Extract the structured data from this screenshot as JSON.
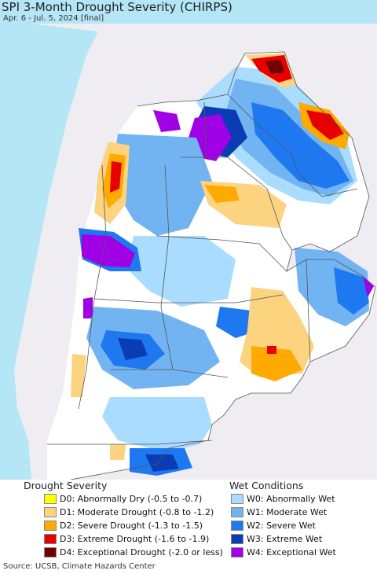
{
  "title": "SPI 3-Month Drought Severity (CHIRPS)",
  "subtitle": "Apr. 6 - Jul. 5, 2024 [final]",
  "legend": {
    "drought": {
      "title": "Drought Severity",
      "items": [
        {
          "label": "D0: Abnormally Dry (-0.5 to -0.7)",
          "color": "#ffff00"
        },
        {
          "label": "D1: Moderate Drought (-0.8 to -1.2)",
          "color": "#fcd37f"
        },
        {
          "label": "D2: Severe Drought (-1.3 to -1.5)",
          "color": "#ffaa00"
        },
        {
          "label": "D3: Extreme Drought (-1.6 to -1.9)",
          "color": "#e60000"
        },
        {
          "label": "D4: Exceptional Drought (-2.0 or less)",
          "color": "#730000"
        }
      ]
    },
    "wet": {
      "title": "Wet Conditions",
      "items": [
        {
          "label": "W0: Abnormally Wet",
          "color": "#aadcff"
        },
        {
          "label": "W1: Moderate Wet",
          "color": "#72b4f2"
        },
        {
          "label": "W2: Severe Wet",
          "color": "#1e78f0"
        },
        {
          "label": "W3: Extreme Wet",
          "color": "#0a3cb4"
        },
        {
          "label": "W4: Exceptional Wet",
          "color": "#a000e6"
        }
      ]
    }
  },
  "source": "Source: UCSB, Climate Hazards Center",
  "colors": {
    "ocean": "#b4e6f5",
    "land_outside": "#efedf2",
    "land_normal": "#ffffff",
    "border": "#555555"
  }
}
